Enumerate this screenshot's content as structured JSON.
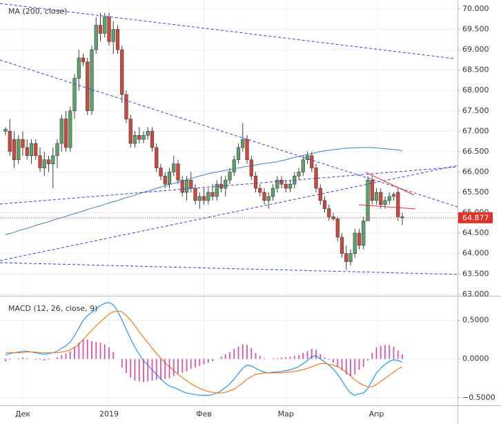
{
  "chart_data": [
    {
      "type": "candlestick",
      "title": "MA (200, close)",
      "categories": [
        null,
        null,
        null,
        null,
        "Дек",
        null,
        null,
        null,
        null,
        null,
        null,
        null,
        null,
        null,
        null,
        null,
        null,
        null,
        null,
        null,
        null,
        null,
        null,
        null,
        "2019",
        null,
        null,
        null,
        null,
        null,
        null,
        null,
        null,
        null,
        null,
        null,
        null,
        null,
        null,
        null,
        null,
        null,
        null,
        null,
        null,
        null,
        "Фев",
        null,
        null,
        null,
        null,
        null,
        null,
        null,
        null,
        null,
        null,
        null,
        null,
        null,
        null,
        null,
        null,
        null,
        null,
        "Мар",
        null,
        null,
        null,
        null,
        null,
        null,
        null,
        null,
        null,
        null,
        null,
        null,
        null,
        null,
        null,
        null,
        null,
        null,
        null,
        null,
        "Апр",
        null,
        null,
        null,
        null,
        null,
        null
      ],
      "open": [
        67.0,
        67.0,
        66.8,
        66.3,
        66.8,
        66.6,
        66.4,
        66.7,
        66.4,
        66.1,
        66.3,
        66.2,
        66.4,
        66.7,
        67.3,
        66.6,
        67.5,
        68.3,
        68.8,
        68.7,
        67.5,
        69.0,
        69.6,
        69.4,
        69.8,
        69.2,
        69.5,
        69.0,
        67.9,
        67.3,
        66.7,
        66.9,
        66.8,
        66.9,
        67.0,
        66.6,
        66.1,
        65.9,
        65.7,
        66.0,
        66.2,
        65.8,
        65.5,
        65.8,
        65.6,
        65.3,
        65.4,
        65.3,
        65.5,
        65.4,
        65.7,
        65.6,
        65.8,
        66.0,
        66.3,
        66.6,
        66.8,
        66.3,
        65.9,
        65.6,
        65.5,
        65.3,
        65.4,
        65.6,
        65.8,
        65.7,
        65.6,
        65.7,
        65.9,
        66.0,
        66.3,
        66.4,
        66.1,
        65.6,
        65.3,
        65.1,
        64.9,
        64.85,
        64.4,
        64.0,
        63.8,
        64.0,
        64.5,
        64.2,
        64.8,
        65.8,
        65.3,
        65.5,
        65.2,
        65.3,
        65.4,
        65.5,
        64.9
      ],
      "high": [
        67.1,
        67.3,
        67.0,
        66.9,
        67.0,
        66.8,
        66.8,
        66.8,
        66.6,
        66.5,
        66.4,
        66.6,
        66.8,
        67.4,
        67.5,
        67.6,
        68.4,
        69.0,
        68.9,
        68.8,
        69.1,
        69.8,
        69.9,
        69.9,
        69.9,
        69.7,
        69.6,
        69.1,
        68.0,
        67.4,
        67.0,
        67.1,
        67.0,
        67.1,
        67.1,
        66.7,
        66.2,
        66.0,
        66.1,
        66.4,
        66.3,
        65.9,
        65.9,
        66.0,
        65.7,
        65.5,
        65.6,
        65.6,
        65.7,
        65.8,
        65.9,
        65.9,
        66.1,
        66.4,
        66.7,
        67.2,
        66.9,
        66.4,
        66.0,
        65.7,
        65.6,
        65.5,
        65.7,
        65.9,
        65.9,
        65.8,
        65.8,
        66.0,
        66.1,
        66.4,
        66.5,
        66.5,
        66.2,
        65.7,
        65.4,
        65.2,
        65.0,
        64.9,
        64.5,
        64.2,
        64.1,
        64.6,
        64.6,
        64.9,
        65.9,
        65.9,
        65.6,
        65.6,
        65.4,
        65.5,
        65.5,
        65.6,
        65.0
      ],
      "low": [
        66.9,
        66.4,
        66.1,
        66.2,
        66.4,
        66.3,
        66.2,
        66.3,
        66.0,
        65.9,
        66.0,
        65.6,
        66.1,
        66.5,
        66.5,
        66.5,
        67.3,
        68.0,
        68.6,
        67.4,
        67.4,
        68.9,
        69.2,
        69.3,
        69.1,
        68.9,
        68.9,
        67.7,
        67.2,
        66.6,
        66.6,
        66.7,
        66.7,
        66.8,
        66.5,
        66.0,
        65.8,
        65.6,
        65.6,
        65.9,
        65.7,
        65.4,
        65.3,
        65.5,
        65.2,
        65.1,
        65.2,
        65.2,
        65.3,
        65.3,
        65.5,
        65.4,
        65.7,
        65.9,
        66.2,
        66.5,
        66.2,
        65.8,
        65.5,
        65.4,
        65.2,
        65.1,
        65.3,
        65.5,
        65.6,
        65.5,
        65.5,
        65.6,
        65.8,
        65.9,
        66.2,
        66.0,
        65.5,
        65.2,
        65.0,
        64.8,
        64.8,
        64.3,
        63.9,
        63.6,
        63.7,
        63.9,
        64.1,
        64.1,
        64.8,
        65.2,
        65.2,
        65.1,
        65.1,
        65.2,
        65.3,
        64.8,
        64.7
      ],
      "close": [
        67.05,
        66.5,
        66.3,
        66.8,
        66.6,
        66.4,
        66.7,
        66.4,
        66.1,
        66.3,
        66.2,
        66.4,
        66.7,
        67.3,
        66.6,
        67.5,
        68.3,
        68.8,
        68.7,
        67.5,
        69.0,
        69.6,
        69.4,
        69.8,
        69.2,
        69.5,
        69.0,
        67.9,
        67.3,
        66.7,
        66.9,
        66.8,
        66.9,
        67.0,
        66.6,
        66.1,
        65.9,
        65.7,
        66.0,
        66.2,
        65.8,
        65.5,
        65.8,
        65.6,
        65.3,
        65.4,
        65.3,
        65.5,
        65.4,
        65.7,
        65.6,
        65.8,
        66.0,
        66.3,
        66.6,
        66.8,
        66.3,
        65.9,
        65.6,
        65.5,
        65.3,
        65.4,
        65.6,
        65.8,
        65.7,
        65.6,
        65.7,
        65.9,
        66.0,
        66.3,
        66.4,
        66.1,
        65.6,
        65.3,
        65.1,
        64.9,
        64.85,
        64.4,
        64.0,
        63.8,
        64.0,
        64.5,
        64.2,
        64.8,
        65.8,
        65.3,
        65.5,
        65.2,
        65.3,
        65.4,
        65.45,
        64.9,
        64.877
      ],
      "ma_values": [
        64.46,
        64.49,
        64.52,
        64.56,
        64.59,
        64.62,
        64.65,
        64.69,
        64.72,
        64.75,
        64.78,
        64.82,
        64.85,
        64.88,
        64.91,
        64.95,
        64.98,
        65.01,
        65.04,
        65.08,
        65.11,
        65.14,
        65.17,
        65.21,
        65.24,
        65.27,
        65.3,
        65.34,
        65.37,
        65.4,
        65.43,
        65.47,
        65.5,
        65.53,
        65.56,
        65.6,
        65.63,
        65.66,
        65.69,
        65.72,
        65.75,
        65.78,
        65.81,
        65.84,
        65.87,
        65.9,
        65.93,
        65.96,
        65.98,
        66.0,
        66.02,
        66.04,
        66.06,
        66.08,
        66.1,
        66.12,
        66.14,
        66.15,
        66.17,
        66.19,
        66.21,
        66.22,
        66.24,
        66.25,
        66.28,
        66.3,
        66.33,
        66.36,
        66.38,
        66.41,
        66.43,
        66.45,
        66.48,
        66.5,
        66.52,
        66.53,
        66.55,
        66.56,
        66.57,
        66.58,
        66.59,
        66.59,
        66.6,
        66.6,
        66.6,
        66.6,
        66.59,
        66.58,
        66.57,
        66.56,
        66.55,
        66.54,
        66.52
      ],
      "ma_color": "#3d7fb5",
      "up_color": "#5aa469",
      "down_color": "#d0473c",
      "last_price": 64.877,
      "last_price_color": "#e0302a",
      "ylim": [
        62.98,
        70.22
      ],
      "yticks": [
        {
          "value": 63,
          "label": "63.000"
        },
        {
          "value": 63.5,
          "label": "63.500"
        },
        {
          "value": 64,
          "label": "64.000"
        },
        {
          "value": 64.5,
          "label": "64.500"
        },
        {
          "value": 65,
          "label": "65.000"
        },
        {
          "value": 65.5,
          "label": "65.500"
        },
        {
          "value": 66,
          "label": "66.000"
        },
        {
          "value": 66.5,
          "label": "66.500"
        },
        {
          "value": 67,
          "label": "67.000"
        },
        {
          "value": 67.5,
          "label": "67.500"
        },
        {
          "value": 68,
          "label": "68.000"
        },
        {
          "value": 68.5,
          "label": "68.500"
        },
        {
          "value": 69,
          "label": "69.000"
        },
        {
          "value": 69.5,
          "label": "69.500"
        },
        {
          "value": 70,
          "label": "70.000"
        }
      ],
      "grid": true
    },
    {
      "type": "macd",
      "title": "MACD (12, 26, close, 9)",
      "series": [
        {
          "name": "MACD",
          "color": "#2196f3",
          "values": [
            0.05,
            0.07,
            0.08,
            0.09,
            0.1,
            0.1,
            0.09,
            0.08,
            0.07,
            0.06,
            0.07,
            0.08,
            0.1,
            0.14,
            0.17,
            0.22,
            0.3,
            0.4,
            0.5,
            0.56,
            0.6,
            0.65,
            0.69,
            0.72,
            0.73,
            0.7,
            0.62,
            0.5,
            0.38,
            0.26,
            0.15,
            0.06,
            -0.02,
            -0.08,
            -0.14,
            -0.2,
            -0.26,
            -0.31,
            -0.35,
            -0.37,
            -0.39,
            -0.42,
            -0.44,
            -0.45,
            -0.46,
            -0.47,
            -0.47,
            -0.47,
            -0.46,
            -0.44,
            -0.41,
            -0.37,
            -0.32,
            -0.26,
            -0.19,
            -0.12,
            -0.08,
            -0.09,
            -0.12,
            -0.15,
            -0.17,
            -0.18,
            -0.17,
            -0.17,
            -0.16,
            -0.15,
            -0.14,
            -0.12,
            -0.1,
            -0.06,
            -0.02,
            0.03,
            0.04,
            0.0,
            -0.04,
            -0.08,
            -0.13,
            -0.2,
            -0.28,
            -0.37,
            -0.44,
            -0.47,
            -0.45,
            -0.44,
            -0.38,
            -0.28,
            -0.18,
            -0.12,
            -0.07,
            -0.03,
            -0.01,
            -0.02,
            -0.04
          ]
        },
        {
          "name": "Signal",
          "color": "#f57c1f",
          "values": [
            0.08,
            0.08,
            0.08,
            0.08,
            0.08,
            0.09,
            0.09,
            0.09,
            0.08,
            0.08,
            0.08,
            0.08,
            0.08,
            0.09,
            0.1,
            0.12,
            0.15,
            0.19,
            0.25,
            0.31,
            0.37,
            0.43,
            0.48,
            0.53,
            0.58,
            0.61,
            0.62,
            0.61,
            0.56,
            0.5,
            0.43,
            0.35,
            0.28,
            0.21,
            0.14,
            0.07,
            0.01,
            -0.05,
            -0.1,
            -0.15,
            -0.2,
            -0.24,
            -0.28,
            -0.32,
            -0.35,
            -0.38,
            -0.4,
            -0.42,
            -0.43,
            -0.44,
            -0.44,
            -0.43,
            -0.41,
            -0.39,
            -0.35,
            -0.31,
            -0.26,
            -0.23,
            -0.2,
            -0.19,
            -0.18,
            -0.18,
            -0.18,
            -0.18,
            -0.18,
            -0.17,
            -0.17,
            -0.16,
            -0.15,
            -0.14,
            -0.12,
            -0.1,
            -0.08,
            -0.06,
            -0.06,
            -0.07,
            -0.08,
            -0.1,
            -0.13,
            -0.17,
            -0.22,
            -0.27,
            -0.31,
            -0.34,
            -0.36,
            -0.36,
            -0.33,
            -0.29,
            -0.25,
            -0.21,
            -0.17,
            -0.13,
            -0.1
          ]
        },
        {
          "name": "Histogram",
          "color": "#d0188a",
          "values": [
            -0.03,
            -0.01,
            0.0,
            0.01,
            0.02,
            0.01,
            0.0,
            -0.01,
            -0.01,
            -0.02,
            -0.01,
            0.0,
            0.02,
            0.05,
            0.07,
            0.1,
            0.15,
            0.21,
            0.25,
            0.25,
            0.23,
            0.22,
            0.21,
            0.19,
            0.15,
            0.09,
            0.0,
            -0.11,
            -0.18,
            -0.24,
            -0.28,
            -0.29,
            -0.3,
            -0.29,
            -0.28,
            -0.27,
            -0.27,
            -0.26,
            -0.25,
            -0.22,
            -0.19,
            -0.18,
            -0.16,
            -0.13,
            -0.11,
            -0.09,
            -0.07,
            -0.05,
            -0.03,
            0.0,
            0.03,
            0.06,
            0.09,
            0.13,
            0.16,
            0.19,
            0.18,
            0.14,
            0.08,
            0.04,
            0.01,
            0.0,
            0.01,
            0.01,
            0.02,
            0.02,
            0.03,
            0.04,
            0.05,
            0.08,
            0.1,
            0.13,
            0.12,
            0.06,
            0.02,
            -0.01,
            -0.05,
            -0.1,
            -0.15,
            -0.2,
            -0.22,
            -0.2,
            -0.14,
            -0.1,
            -0.02,
            0.08,
            0.15,
            0.17,
            0.18,
            0.18,
            0.16,
            0.11,
            0.06
          ]
        }
      ],
      "ylim": [
        -0.6,
        0.79
      ],
      "yticks": [
        {
          "value": -0.5,
          "label": "−0.5000"
        },
        {
          "value": 0,
          "label": "0.0000"
        },
        {
          "value": 0.5,
          "label": "0.5000"
        }
      ],
      "grid": true
    }
  ]
}
